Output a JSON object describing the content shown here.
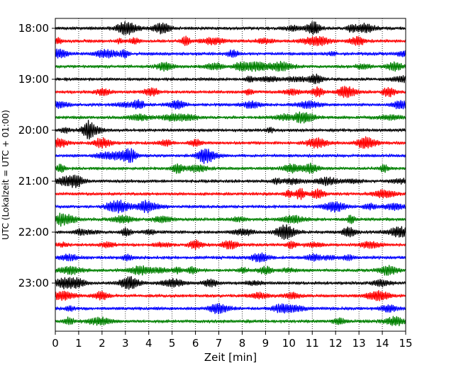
{
  "chart_data": {
    "type": "line",
    "title": "",
    "xlabel": "Zeit  [min]",
    "ylabel": "UTC (Lokalzeit = UTC + 01:00)",
    "x_ticks": [
      0,
      1,
      2,
      3,
      4,
      5,
      6,
      7,
      8,
      9,
      10,
      11,
      12,
      13,
      14,
      15
    ],
    "xlim": [
      0,
      15
    ],
    "y_tick_labels": [
      "18:00",
      "19:00",
      "20:00",
      "21:00",
      "22:00",
      "23:00"
    ],
    "grid": "vertical dotted",
    "trace_colors": [
      "#000000",
      "#ff0000",
      "#0000ff",
      "#008000"
    ],
    "trace_start_times": [
      "18:00",
      "18:15",
      "18:30",
      "18:45",
      "19:00",
      "19:15",
      "19:30",
      "19:45",
      "20:00",
      "20:15",
      "20:30",
      "20:45",
      "21:00",
      "21:15",
      "21:30",
      "21:45",
      "22:00",
      "22:15",
      "22:30",
      "22:45",
      "23:00",
      "23:15",
      "23:30",
      "23:45"
    ],
    "trace_duration_min": 15
  }
}
